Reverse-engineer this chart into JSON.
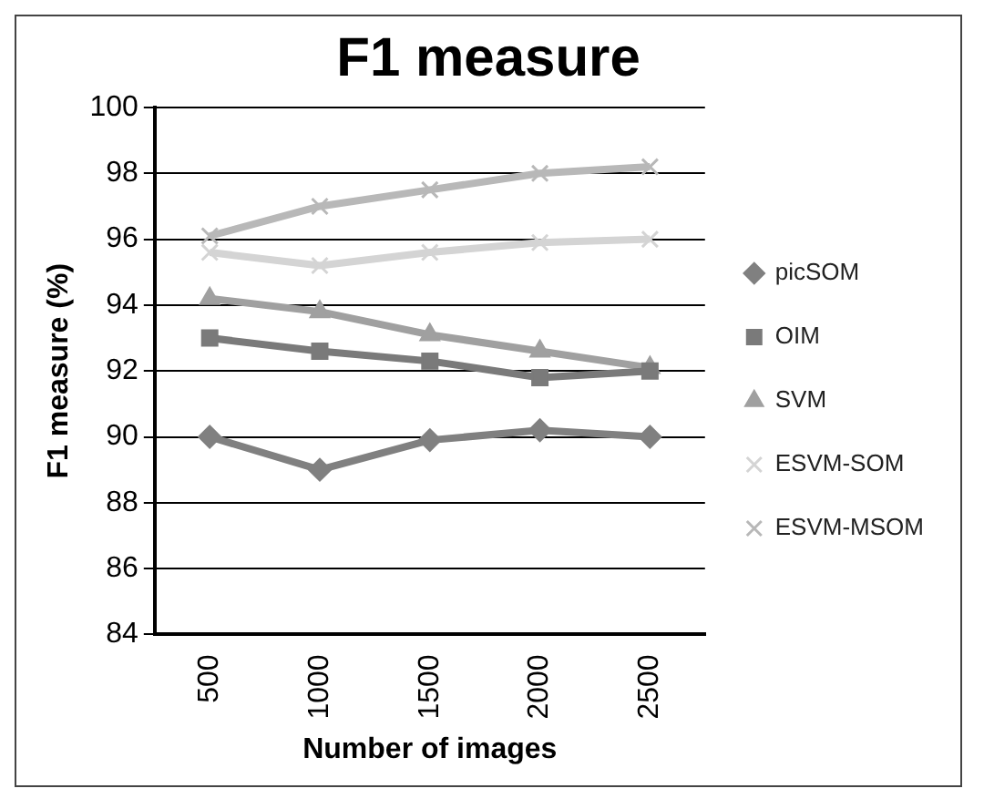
{
  "chart_data": {
    "type": "line",
    "title": "F1 measure",
    "xlabel": "Number of images",
    "ylabel": "F1 measure (%)",
    "categories": [
      "500",
      "1000",
      "1500",
      "2000",
      "2500"
    ],
    "series": [
      {
        "name": "picSOM",
        "color": "#808080",
        "marker": "diamond",
        "values": [
          90,
          89.0,
          89.9,
          90.2,
          90
        ]
      },
      {
        "name": "OIM",
        "color": "#7a7a7a",
        "marker": "square",
        "values": [
          93.0,
          92.6,
          92.3,
          91.8,
          92.0
        ]
      },
      {
        "name": "SVM",
        "color": "#a0a0a0",
        "marker": "triangle",
        "values": [
          94.2,
          93.8,
          93.1,
          92.6,
          92.1
        ]
      },
      {
        "name": "ESVM-SOM",
        "color": "#d4d4d4",
        "marker": "cross",
        "values": [
          95.6,
          95.2,
          95.6,
          95.9,
          96.0
        ]
      },
      {
        "name": "ESVM-MSOM",
        "color": "#b8b8b8",
        "marker": "cross",
        "values": [
          96.1,
          97.0,
          97.5,
          98.0,
          98.2
        ]
      }
    ],
    "ylim": [
      84,
      100
    ],
    "yticks": [
      84,
      86,
      88,
      90,
      92,
      94,
      96,
      98,
      100
    ],
    "grid": "y",
    "legend": "right"
  }
}
